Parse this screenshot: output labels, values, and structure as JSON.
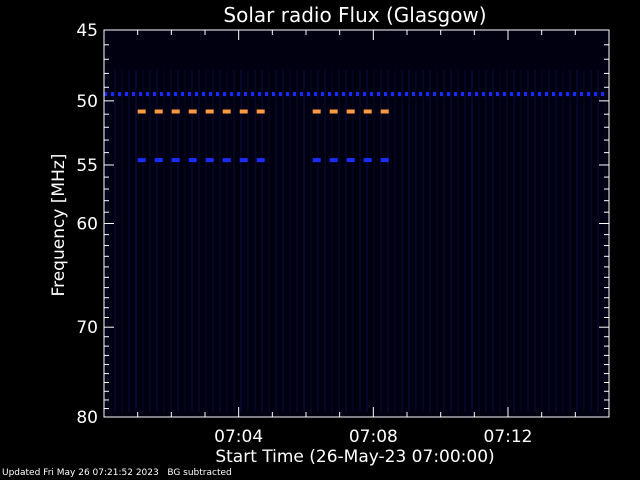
{
  "chart_data": {
    "type": "heatmap",
    "title": "Solar radio Flux (Glasgow)",
    "xlabel": "Start Time (26-May-23 07:00:00)",
    "ylabel": "Frequency [MHz]",
    "x_range_minutes": [
      0,
      15
    ],
    "x_ticks": [
      {
        "label": "07:04",
        "minute": 4
      },
      {
        "label": "07:08",
        "minute": 8
      },
      {
        "label": "07:12",
        "minute": 12
      }
    ],
    "y_range_mhz": [
      45,
      80
    ],
    "y_ticks": [
      45,
      50,
      55,
      60,
      70,
      80
    ],
    "y_scale": "log",
    "emission_bands": [
      {
        "freq_mhz": 49.5,
        "t_start": 0.0,
        "t_end": 15.0,
        "color": "#1a2cff",
        "intensity": "low"
      },
      {
        "freq_mhz": 50.8,
        "t_start": 1.0,
        "t_end": 5.2,
        "color": "#ff9a40",
        "intensity": "high"
      },
      {
        "freq_mhz": 50.8,
        "t_start": 6.2,
        "t_end": 8.5,
        "color": "#ff9a40",
        "intensity": "high"
      },
      {
        "freq_mhz": 54.6,
        "t_start": 1.0,
        "t_end": 5.2,
        "color": "#1a2cff",
        "intensity": "medium"
      },
      {
        "freq_mhz": 54.6,
        "t_start": 6.2,
        "t_end": 8.5,
        "color": "#1a2cff",
        "intensity": "medium"
      }
    ],
    "background_color": "#000010"
  },
  "footer": {
    "updated": "Updated Fri May 26 07:21:52 2023",
    "note": "BG subtracted"
  }
}
